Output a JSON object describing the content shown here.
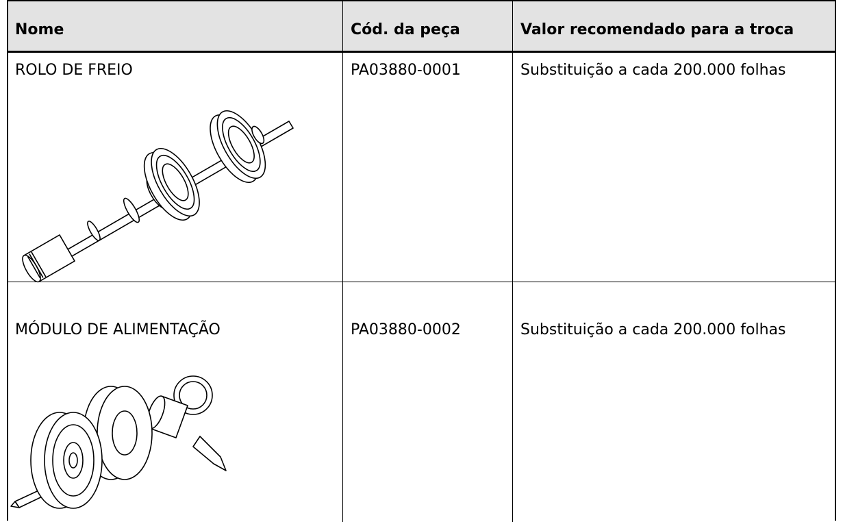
{
  "table": {
    "header": [
      "Nome",
      "Cód. da peça",
      "Valor recomendado para a troca"
    ],
    "rows": [
      [
        "ROLO DE FREIO",
        "PA03880-0001",
        "Substituição a cada 200.000 folhas"
      ],
      [
        "MÓDULO DE ALIMENTAÇÃO",
        "PA03880-0002",
        "Substituição a cada 200.000 folhas"
      ]
    ]
  }
}
